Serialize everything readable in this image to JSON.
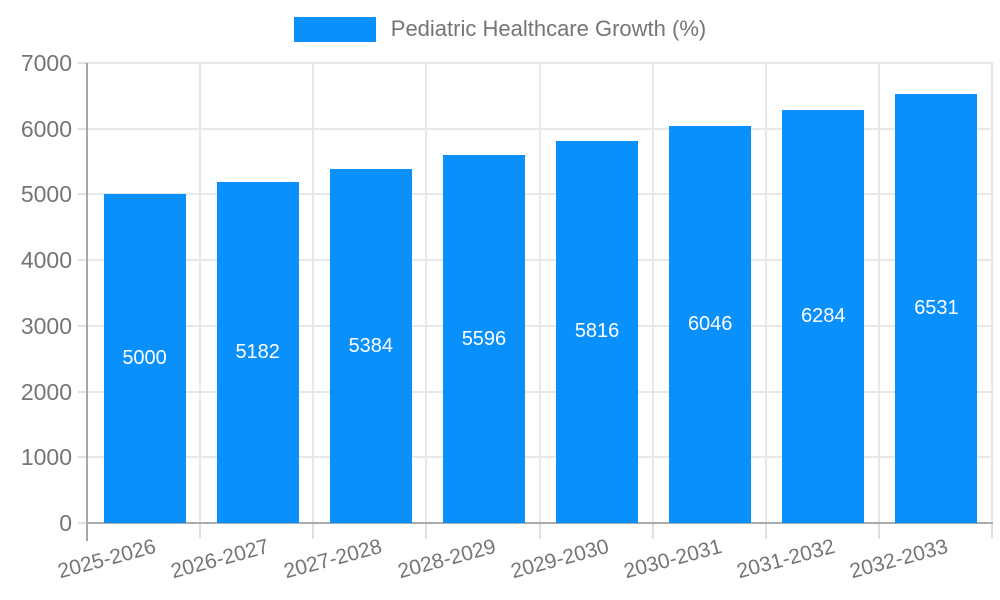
{
  "legend": {
    "label": "Pediatric Healthcare Growth (%)",
    "swatch_color": "#0a90fa"
  },
  "chart_data": {
    "type": "bar",
    "title": "Pediatric Healthcare Growth (%)",
    "categories": [
      "2025-2026",
      "2026-2027",
      "2027-2028",
      "2028-2029",
      "2029-2030",
      "2030-2031",
      "2031-2032",
      "2032-2033"
    ],
    "values": [
      5000,
      5182,
      5384,
      5596,
      5816,
      6046,
      6284,
      6531
    ],
    "xlabel": "",
    "ylabel": "",
    "ylim": [
      0,
      7000
    ],
    "yticks": [
      0,
      1000,
      2000,
      3000,
      4000,
      5000,
      6000,
      7000
    ],
    "grid": true,
    "legend_position": "top-center",
    "value_labels_inside_bars": true,
    "x_label_rotation_deg": -15,
    "colors": {
      "bar": "#0a90fa",
      "bar_value_text": "#ffffff",
      "axis_text": "#757575",
      "grid_line": "#e8e8e8",
      "axis_line": "#a6a6a6",
      "background": "#ffffff"
    }
  }
}
